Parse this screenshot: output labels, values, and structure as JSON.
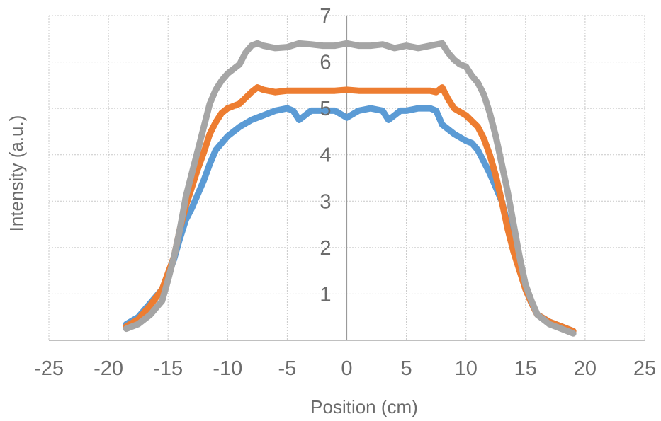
{
  "chart_data": {
    "type": "line",
    "title": "",
    "xlabel": "Position (cm)",
    "ylabel": "Intensity (a.u.)",
    "xlim": [
      -25,
      25
    ],
    "ylim": [
      0,
      7
    ],
    "x_ticks": [
      -25,
      -20,
      -15,
      -10,
      -5,
      0,
      5,
      10,
      15,
      20,
      25
    ],
    "y_ticks": [
      1,
      2,
      3,
      4,
      5,
      6,
      7
    ],
    "x_tick_labels": [
      "-25",
      "-20",
      "-15",
      "-10",
      "-5",
      "0",
      "5",
      "10",
      "15",
      "20",
      "25"
    ],
    "y_tick_labels": [
      "1",
      "2",
      "3",
      "4",
      "5",
      "6",
      "7"
    ],
    "grid": true,
    "legend": "none",
    "series": [
      {
        "color": "#5b9bd5",
        "x": [
          -18.5,
          -17.5,
          -16.5,
          -15.5,
          -15,
          -14.5,
          -14,
          -13.5,
          -13,
          -12.5,
          -12,
          -11.5,
          -11,
          -10.5,
          -10,
          -9,
          -8,
          -7,
          -6,
          -5,
          -4.5,
          -4,
          -3.5,
          -3,
          -2,
          -1,
          0,
          1,
          2,
          3,
          3.5,
          4,
          4.5,
          5,
          6,
          7,
          7.5,
          8,
          9,
          10,
          10.5,
          11,
          11.5,
          12,
          12.5,
          13,
          13.5,
          14,
          14.5,
          15,
          15.5,
          16,
          17,
          18,
          19
        ],
        "y": [
          0.35,
          0.5,
          0.8,
          1.1,
          1.4,
          1.75,
          2.2,
          2.6,
          2.85,
          3.15,
          3.45,
          3.8,
          4.1,
          4.25,
          4.4,
          4.6,
          4.75,
          4.85,
          4.95,
          5.0,
          4.95,
          4.75,
          4.85,
          4.95,
          4.95,
          4.95,
          4.8,
          4.95,
          5.0,
          4.95,
          4.75,
          4.85,
          4.95,
          4.95,
          5.0,
          5.0,
          4.95,
          4.65,
          4.45,
          4.3,
          4.25,
          4.1,
          3.85,
          3.6,
          3.3,
          3.0,
          2.5,
          2.0,
          1.6,
          1.1,
          0.8,
          0.55,
          0.4,
          0.3,
          0.2
        ]
      },
      {
        "color": "#ed7d31",
        "x": [
          -18.5,
          -17.5,
          -16.5,
          -15.5,
          -15,
          -14.5,
          -14,
          -13.5,
          -13,
          -12.5,
          -12,
          -11.5,
          -11,
          -10.5,
          -10,
          -9,
          -8,
          -7.5,
          -7,
          -6,
          -5,
          -4,
          -3,
          -2,
          -1,
          0,
          1,
          2,
          3,
          4,
          5,
          6,
          7,
          7.5,
          8,
          8.5,
          9,
          10,
          11,
          11.5,
          12,
          12.5,
          13,
          13.5,
          14,
          14.5,
          15,
          15.5,
          16,
          17,
          18,
          19
        ],
        "y": [
          0.3,
          0.45,
          0.75,
          1.1,
          1.45,
          1.8,
          2.4,
          2.9,
          3.3,
          3.7,
          4.05,
          4.45,
          4.7,
          4.9,
          5.0,
          5.1,
          5.35,
          5.45,
          5.4,
          5.35,
          5.38,
          5.38,
          5.38,
          5.38,
          5.38,
          5.4,
          5.38,
          5.38,
          5.38,
          5.38,
          5.38,
          5.38,
          5.38,
          5.35,
          5.45,
          5.2,
          5.0,
          4.85,
          4.6,
          4.35,
          4.0,
          3.55,
          3.0,
          2.4,
          1.9,
          1.5,
          1.1,
          0.8,
          0.55,
          0.4,
          0.3,
          0.2
        ]
      },
      {
        "color": "#a5a5a5",
        "x": [
          -18.5,
          -17.5,
          -16.5,
          -15.5,
          -15,
          -14.5,
          -14,
          -13.5,
          -13,
          -12.5,
          -12,
          -11.5,
          -11,
          -10.5,
          -10,
          -9.5,
          -9,
          -8.5,
          -8,
          -7.5,
          -7,
          -6,
          -5,
          -4,
          -3,
          -2,
          -1,
          0,
          1,
          2,
          3,
          4,
          5,
          6,
          7,
          8,
          8.5,
          9,
          9.5,
          10,
          10.5,
          11,
          11.5,
          12,
          12.5,
          13,
          13.5,
          14,
          14.5,
          15,
          15.5,
          16,
          17,
          18,
          19
        ],
        "y": [
          0.25,
          0.35,
          0.55,
          0.85,
          1.3,
          1.8,
          2.4,
          3.1,
          3.6,
          4.1,
          4.6,
          5.1,
          5.4,
          5.6,
          5.75,
          5.85,
          5.95,
          6.2,
          6.35,
          6.4,
          6.35,
          6.3,
          6.32,
          6.4,
          6.38,
          6.35,
          6.35,
          6.4,
          6.35,
          6.35,
          6.38,
          6.3,
          6.35,
          6.3,
          6.35,
          6.4,
          6.2,
          6.05,
          5.95,
          5.9,
          5.7,
          5.55,
          5.3,
          4.9,
          4.4,
          3.8,
          3.2,
          2.5,
          1.8,
          1.2,
          0.85,
          0.55,
          0.35,
          0.25,
          0.15
        ]
      }
    ]
  }
}
